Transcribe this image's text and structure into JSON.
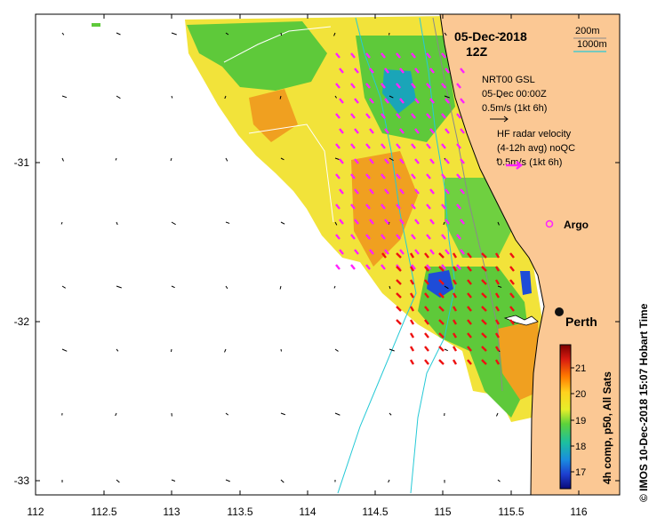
{
  "header": {
    "date": "05-Dec-2018",
    "hour": "12Z"
  },
  "contour_legend": {
    "c200": "200m",
    "c1000": "1000m",
    "c200_color": "#8a8a8a",
    "c1000_color": "#26c9d6"
  },
  "model_legend": {
    "line1": "NRT00 GSL",
    "line2": "05-Dec 00:00Z",
    "line3": "0.5m/s (1kt 6h)"
  },
  "radar_legend": {
    "line1": "HF radar velocity",
    "line2": "(4-12h avg) noQC",
    "line3": "0.5m/s (1kt 6h)",
    "arrow_color": "#ff22ff"
  },
  "places": {
    "argo": "Argo",
    "perth": "Perth"
  },
  "colorbar": {
    "ticks": [
      "21",
      "20",
      "19",
      "18",
      "17"
    ],
    "label": "4h comp, p50, All Sats"
  },
  "credit": "© IMOS 10-Dec-2018 15:07 Hobart Time",
  "axes": {
    "x_ticks": [
      "112",
      "112.5",
      "113",
      "113.5",
      "114",
      "114.5",
      "115",
      "115.5",
      "116"
    ],
    "y_ticks": [
      "-31",
      "-32",
      "-33"
    ]
  },
  "colors": {
    "land": "#fbc894",
    "sst_warm": "#f2e33a",
    "sst_green": "#5ec93a",
    "sst_orange": "#f0a020",
    "radar_red": "#ee1111"
  }
}
